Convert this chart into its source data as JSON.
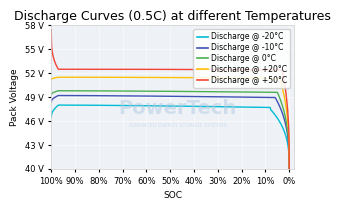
{
  "title": "Discharge Curves (0.5C) at different Temperatures",
  "xlabel": "SOC",
  "ylabel": "Pack Voltage",
  "ylim": [
    40,
    58
  ],
  "yticks": [
    40,
    43,
    46,
    49,
    52,
    55,
    58
  ],
  "ytick_labels": [
    "40 V",
    "43 V",
    "46 V",
    "49 V",
    "52 V",
    "55 V",
    "58 V"
  ],
  "xtick_labels": [
    "100%",
    "90%",
    "80%",
    "70%",
    "60%",
    "50%",
    "40%",
    "30%",
    "20%",
    "10%",
    "0%"
  ],
  "bg_color": "#ffffff",
  "plot_bg_color": "#eef2f7",
  "series": [
    {
      "label": "Discharge @ -20°C",
      "color": "#00bcd4",
      "tag": "-20"
    },
    {
      "label": "Discharge @ -10°C",
      "color": "#3f51b5",
      "tag": "-10"
    },
    {
      "label": "Discharge @ 0°C",
      "color": "#4caf50",
      "tag": "0"
    },
    {
      "label": "Discharge @ +20°C",
      "color": "#ffc107",
      "tag": "+20"
    },
    {
      "label": "Discharge @ +50°C",
      "color": "#f44336",
      "tag": "+50"
    }
  ],
  "watermark_text": "PowerTech",
  "watermark_sub": "ADVANCED ENERGY STORAGE SYSTEMS",
  "title_fontsize": 9,
  "axis_fontsize": 6,
  "legend_fontsize": 5.5
}
